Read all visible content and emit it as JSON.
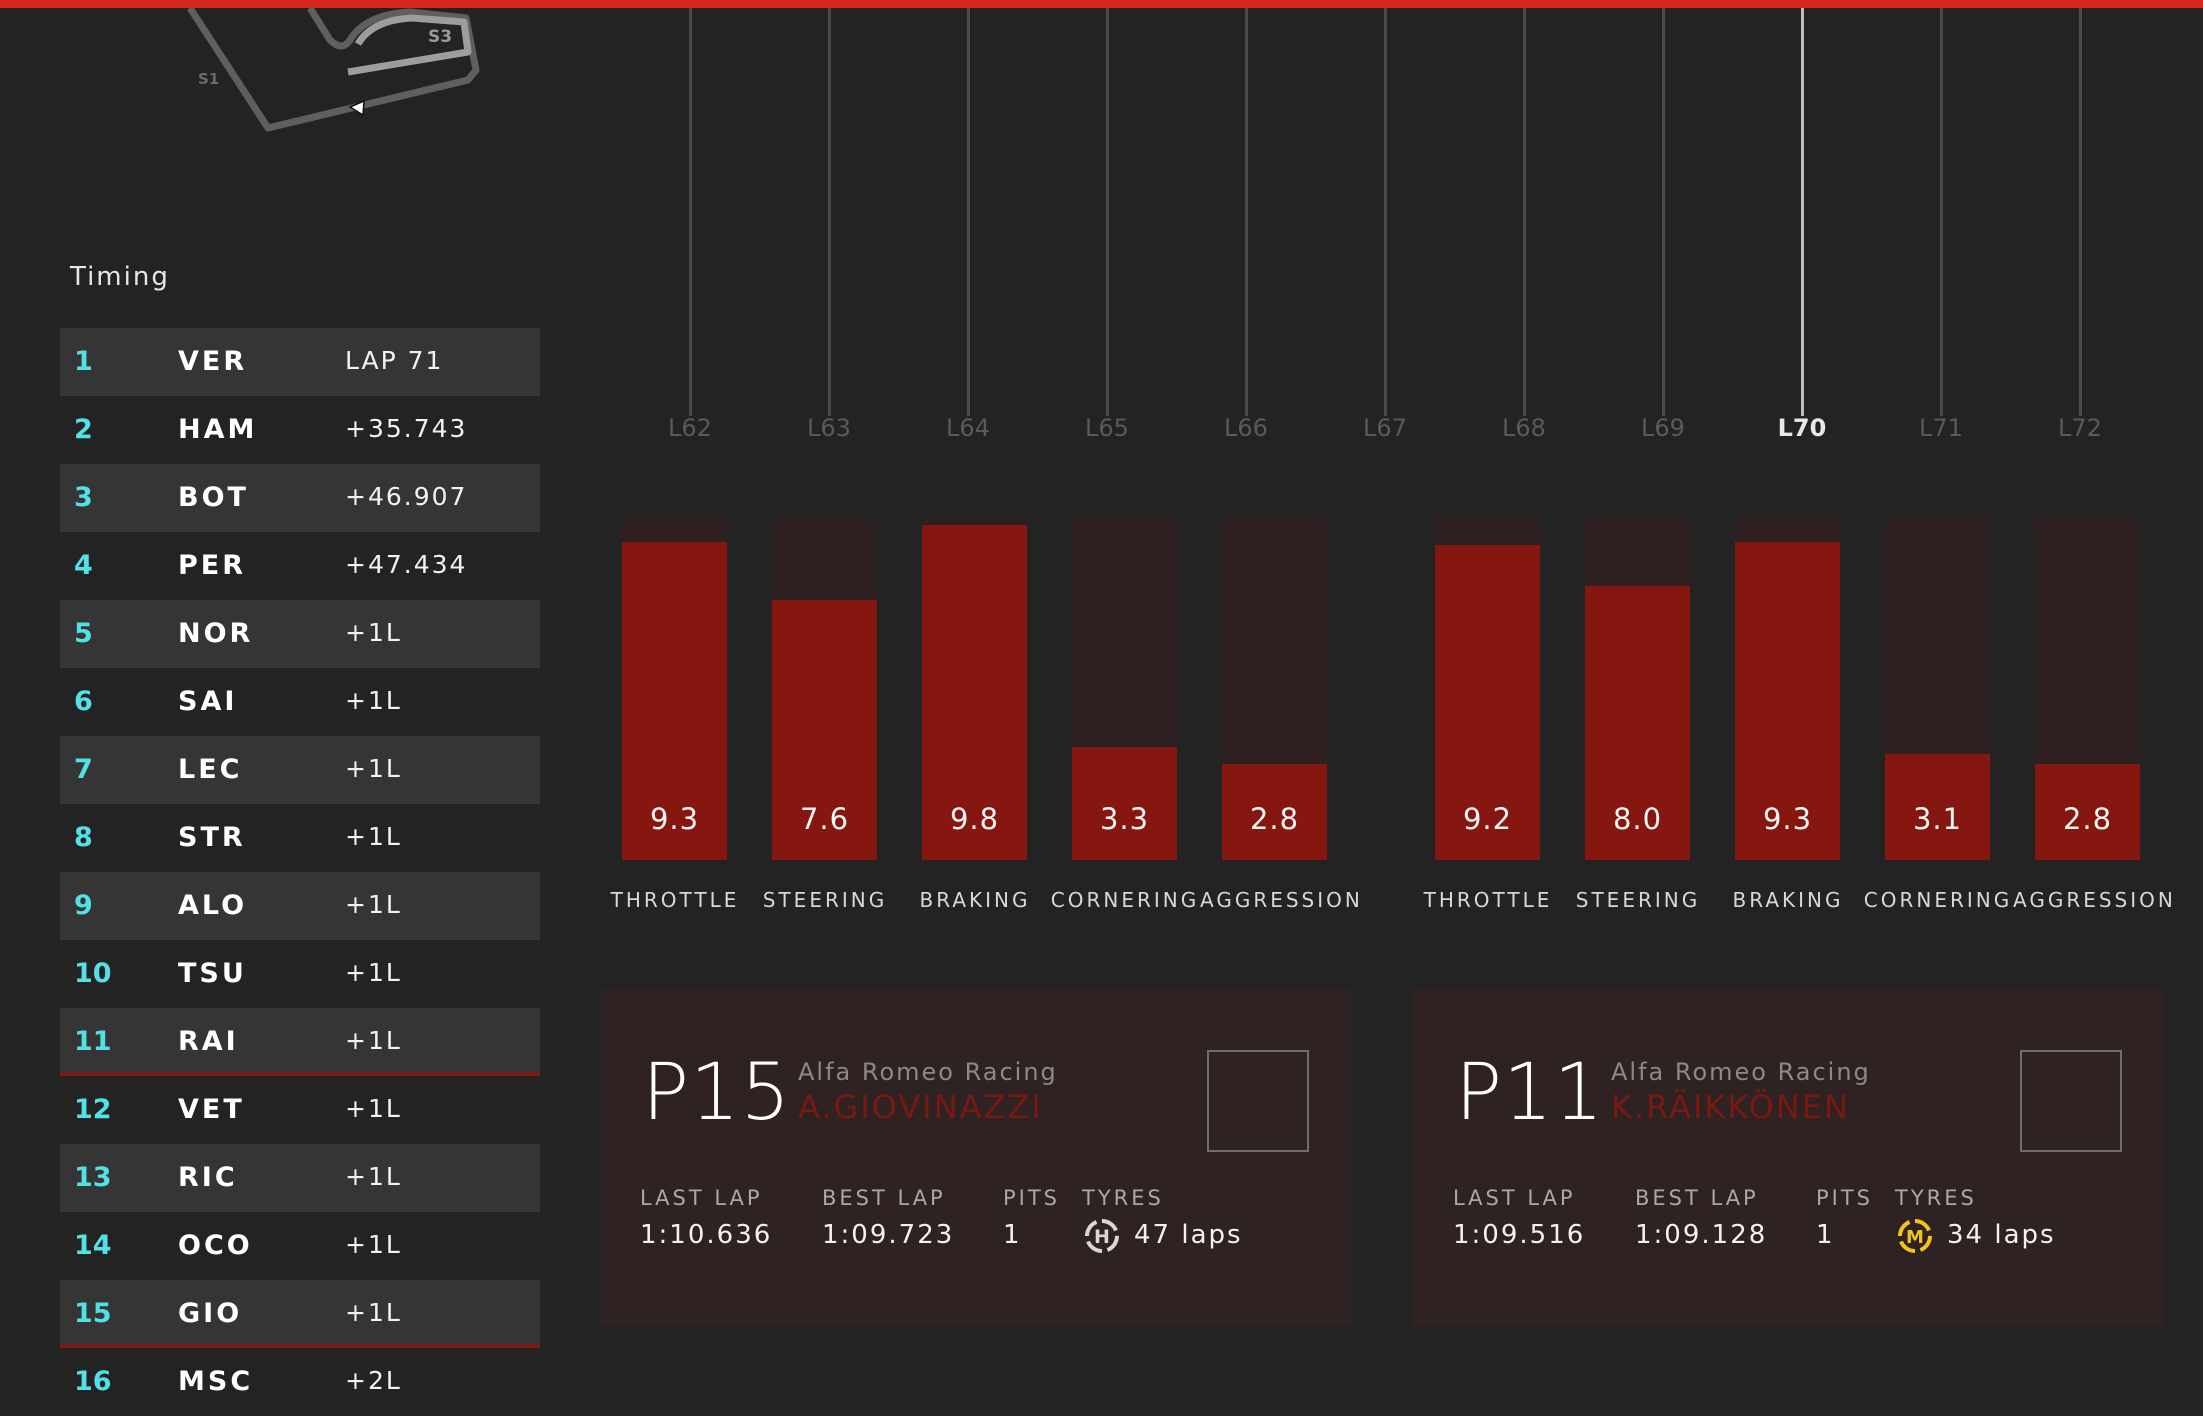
{
  "colors": {
    "accent_red": "#d5271f",
    "bar_fill": "#861610",
    "bar_track": "#2e2020",
    "position_cyan": "#52e1e6",
    "driver_name_red": "#7a1812",
    "tyre_hard": "#d8d8d8",
    "tyre_medium": "#f0c419"
  },
  "trackmap": {
    "sector_labels": [
      "S3",
      "S1"
    ]
  },
  "timing": {
    "title": "Timing",
    "rows": [
      {
        "pos": "1",
        "code": "VER",
        "gap": "LAP 71"
      },
      {
        "pos": "2",
        "code": "HAM",
        "gap": "+35.743"
      },
      {
        "pos": "3",
        "code": "BOT",
        "gap": "+46.907"
      },
      {
        "pos": "4",
        "code": "PER",
        "gap": "+47.434"
      },
      {
        "pos": "5",
        "code": "NOR",
        "gap": "+1L"
      },
      {
        "pos": "6",
        "code": "SAI",
        "gap": "+1L"
      },
      {
        "pos": "7",
        "code": "LEC",
        "gap": "+1L"
      },
      {
        "pos": "8",
        "code": "STR",
        "gap": "+1L"
      },
      {
        "pos": "9",
        "code": "ALO",
        "gap": "+1L"
      },
      {
        "pos": "10",
        "code": "TSU",
        "gap": "+1L"
      },
      {
        "pos": "11",
        "code": "RAI",
        "gap": "+1L"
      },
      {
        "pos": "12",
        "code": "VET",
        "gap": "+1L"
      },
      {
        "pos": "13",
        "code": "RIC",
        "gap": "+1L"
      },
      {
        "pos": "14",
        "code": "OCO",
        "gap": "+1L"
      },
      {
        "pos": "15",
        "code": "GIO",
        "gap": "+1L"
      },
      {
        "pos": "16",
        "code": "MSC",
        "gap": "+2L"
      }
    ],
    "highlighted_positions": [
      "11",
      "15"
    ]
  },
  "laps": {
    "labels": [
      "L62",
      "L63",
      "L64",
      "L65",
      "L66",
      "L67",
      "L68",
      "L69",
      "L70",
      "L71",
      "L72"
    ],
    "current": "L70"
  },
  "driver_ratings": [
    {
      "driver": "A.GIOVINAZZI",
      "metrics": [
        {
          "label": "THROTTLE",
          "value": "9.3"
        },
        {
          "label": "STEERING",
          "value": "7.6"
        },
        {
          "label": "BRAKING",
          "value": "9.8"
        },
        {
          "label": "CORNERING",
          "value": "3.3"
        },
        {
          "label": "AGGRESSION",
          "value": "2.8"
        }
      ]
    },
    {
      "driver": "K.RÄIKKÖNEN",
      "metrics": [
        {
          "label": "THROTTLE",
          "value": "9.2"
        },
        {
          "label": "STEERING",
          "value": "8.0"
        },
        {
          "label": "BRAKING",
          "value": "9.3"
        },
        {
          "label": "CORNERING",
          "value": "3.1"
        },
        {
          "label": "AGGRESSION",
          "value": "2.8"
        }
      ]
    }
  ],
  "cards": [
    {
      "position": "P15",
      "team": "Alfa Romeo Racing",
      "driver": "A.GIOVINAZZI",
      "last_lap_label": "LAST LAP",
      "last_lap": "1:10.636",
      "best_lap_label": "BEST LAP",
      "best_lap": "1:09.723",
      "pits_label": "PITS",
      "pits": "1",
      "tyres_label": "TYRES",
      "tyre_compound": "H",
      "tyre_laps": "47 laps",
      "tyre_icon": "hard-tyre-icon"
    },
    {
      "position": "P11",
      "team": "Alfa Romeo Racing",
      "driver": "K.RÄIKKÖNEN",
      "last_lap_label": "LAST LAP",
      "last_lap": "1:09.516",
      "best_lap_label": "BEST LAP",
      "best_lap": "1:09.128",
      "pits_label": "PITS",
      "pits": "1",
      "tyres_label": "TYRES",
      "tyre_compound": "M",
      "tyre_laps": "34 laps",
      "tyre_icon": "medium-tyre-icon"
    }
  ]
}
